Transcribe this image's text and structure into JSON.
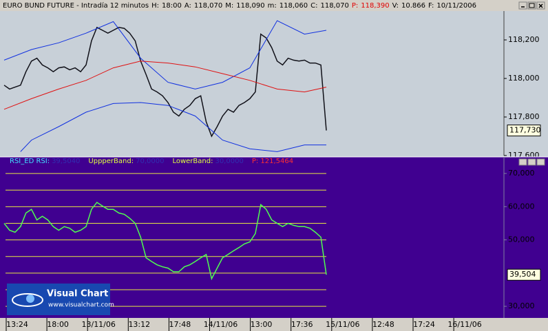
{
  "header": {
    "title": "EURO BUND FUTURE - Intradía 12 minutos",
    "info": [
      {
        "label": "H:",
        "text": "18:00"
      },
      {
        "label": "A:",
        "text": "118,070"
      },
      {
        "label": "M:",
        "text": "118,090"
      },
      {
        "label": "m:",
        "text": "118,060"
      },
      {
        "label": "C:",
        "text": "118,070"
      },
      {
        "label": "P:",
        "text": "118,390"
      },
      {
        "label": "V:",
        "text": "10.866"
      },
      {
        "label": "F:",
        "text": "10/11/2006"
      }
    ]
  },
  "chart_data": [
    {
      "type": "line",
      "background": "#c8d0d8",
      "series": [
        {
          "name": "Price",
          "color": "#101018",
          "last_value_label": "117,730",
          "values": [
            117965,
            117945,
            117955,
            117965,
            118035,
            118090,
            118105,
            118070,
            118055,
            118035,
            118055,
            118060,
            118045,
            118055,
            118035,
            118070,
            118195,
            118265,
            118250,
            118235,
            118250,
            118265,
            118260,
            118235,
            118195,
            118090,
            118020,
            117945,
            117930,
            117910,
            117875,
            117825,
            117805,
            117840,
            117860,
            117895,
            117910,
            117775,
            117700,
            117750,
            117805,
            117840,
            117825,
            117860,
            117875,
            117895,
            117930,
            118230,
            118210,
            118160,
            118090,
            118070,
            118105,
            118095,
            118090,
            118095,
            118080,
            118080,
            118070,
            117730
          ]
        },
        {
          "name": "Upper",
          "color": "#1030e0",
          "x": [
            0,
            5,
            10,
            15,
            20,
            25,
            30,
            35,
            40,
            45,
            50,
            55,
            59
          ],
          "values": [
            118095,
            118150,
            118185,
            118235,
            118295,
            118105,
            117980,
            117945,
            117980,
            118055,
            118300,
            118230,
            118250
          ]
        },
        {
          "name": "Middle",
          "color": "#e01010",
          "x": [
            0,
            5,
            10,
            15,
            20,
            25,
            30,
            35,
            40,
            45,
            50,
            55,
            59
          ],
          "values": [
            117840,
            117895,
            117945,
            117990,
            118055,
            118090,
            118080,
            118060,
            118025,
            117990,
            117945,
            117930,
            117955
          ]
        },
        {
          "name": "Lower",
          "color": "#1030e0",
          "x": [
            3,
            5,
            10,
            15,
            20,
            25,
            30,
            35,
            40,
            45,
            50,
            55,
            59
          ],
          "values": [
            117620,
            117680,
            117750,
            117825,
            117870,
            117875,
            117860,
            117805,
            117680,
            117635,
            117620,
            117655,
            117655
          ]
        }
      ],
      "ylim": [
        117600,
        118350
      ],
      "yticks": [
        {
          "value": 117600,
          "label": "117,600"
        },
        {
          "value": 117800,
          "label": "117,800"
        },
        {
          "value": 118000,
          "label": "118,000"
        },
        {
          "value": 118200,
          "label": "118,200"
        }
      ]
    },
    {
      "type": "line",
      "background": "#400090",
      "legend": [
        {
          "label": "RSI_ED RSI:",
          "value": "39,5040",
          "color": "#40e0ff"
        },
        {
          "label": "UppperBand:",
          "value": "70,0000",
          "color": "#e0ff40"
        },
        {
          "label": "LowerBand:",
          "value": "30,0000",
          "color": "#e0ff40"
        },
        {
          "label": "P: 121,5464",
          "color": "#ff3030"
        }
      ],
      "series": [
        {
          "name": "RSI",
          "color": "#50ff50",
          "last_value_label": "39,504",
          "values": [
            55,
            52.9,
            52.3,
            54,
            58.1,
            59.2,
            56,
            57.1,
            56,
            54,
            52.9,
            54,
            53.5,
            52.3,
            52.9,
            54,
            59.2,
            61.3,
            60.2,
            59.2,
            59.2,
            58.1,
            57.7,
            56.5,
            55,
            50.8,
            44.6,
            43.5,
            42.5,
            41.9,
            41.5,
            40.4,
            40.4,
            41.9,
            42.5,
            43.5,
            44.6,
            45.6,
            38.3,
            41.5,
            44.6,
            45.6,
            46.7,
            47.7,
            48.8,
            49.4,
            51.9,
            60.6,
            59.2,
            56,
            55,
            54,
            55,
            54.4,
            54,
            54,
            53.5,
            52.3,
            50.8,
            39.504
          ]
        }
      ],
      "levels": [
        30,
        35,
        40,
        45,
        50,
        55,
        60,
        65,
        70
      ],
      "level_color": "#e8e840",
      "ylim": [
        26.5,
        72.5
      ],
      "yticks": [
        {
          "value": 30,
          "label": "30,000"
        },
        {
          "value": 50,
          "label": "50,000"
        },
        {
          "value": 60,
          "label": "60,000"
        },
        {
          "value": 70,
          "label": "70,000"
        }
      ]
    }
  ],
  "time_axis": {
    "labels": [
      "13:24",
      "18:00",
      "13/11/06",
      "13:12",
      "17:48",
      "14/11/06",
      "13:00",
      "17:36",
      "15/11/06",
      "12:48",
      "17:24",
      "16/11/06"
    ]
  },
  "logo": {
    "name": "Visual Chart",
    "url": "www.visualchart.com"
  }
}
